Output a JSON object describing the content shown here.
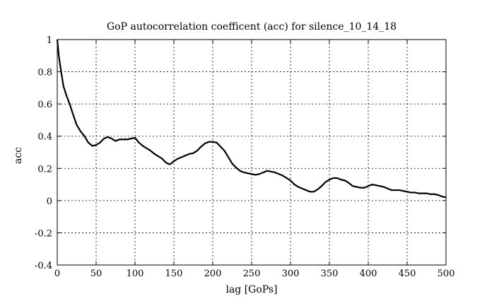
{
  "chart_data": {
    "type": "line",
    "title": "GoP autocorrelation coefficent (acc) for silence_10_14_18",
    "xlabel": "lag [GoPs]",
    "ylabel": "acc",
    "xlim": [
      0,
      500
    ],
    "ylim": [
      -0.4,
      1
    ],
    "grid": true,
    "x_ticks": [
      0,
      50,
      100,
      150,
      200,
      250,
      300,
      350,
      400,
      450,
      500
    ],
    "y_ticks": [
      -0.4,
      -0.2,
      0,
      0.2,
      0.4,
      0.6,
      0.8,
      1
    ],
    "x_tick_labels": [
      "0",
      "50",
      "100",
      "150",
      "200",
      "250",
      "300",
      "350",
      "400",
      "450",
      "500"
    ],
    "y_tick_labels": [
      "-0.4",
      "-0.2",
      "0",
      "0.2",
      "0.4",
      "0.6",
      "0.8",
      "1"
    ],
    "series": [
      {
        "name": "acc",
        "x": [
          0,
          2,
          5,
          8,
          12,
          16,
          20,
          25,
          30,
          35,
          40,
          45,
          50,
          55,
          60,
          65,
          70,
          75,
          80,
          85,
          90,
          95,
          100,
          105,
          110,
          115,
          120,
          125,
          130,
          135,
          140,
          145,
          150,
          155,
          160,
          165,
          170,
          175,
          180,
          185,
          190,
          195,
          200,
          205,
          210,
          215,
          220,
          225,
          230,
          235,
          240,
          245,
          250,
          255,
          260,
          265,
          270,
          275,
          280,
          285,
          290,
          295,
          300,
          305,
          310,
          315,
          320,
          325,
          330,
          335,
          340,
          345,
          350,
          355,
          360,
          365,
          370,
          375,
          380,
          385,
          390,
          395,
          400,
          405,
          410,
          415,
          420,
          425,
          430,
          435,
          440,
          445,
          450,
          455,
          460,
          465,
          470,
          475,
          480,
          485,
          490,
          495,
          500
        ],
        "values": [
          1.0,
          0.9,
          0.8,
          0.71,
          0.65,
          0.6,
          0.54,
          0.47,
          0.43,
          0.4,
          0.36,
          0.34,
          0.345,
          0.36,
          0.385,
          0.395,
          0.385,
          0.37,
          0.38,
          0.38,
          0.38,
          0.385,
          0.39,
          0.36,
          0.34,
          0.325,
          0.31,
          0.29,
          0.275,
          0.26,
          0.235,
          0.225,
          0.245,
          0.26,
          0.27,
          0.28,
          0.29,
          0.295,
          0.31,
          0.335,
          0.355,
          0.365,
          0.365,
          0.36,
          0.335,
          0.31,
          0.27,
          0.23,
          0.205,
          0.185,
          0.175,
          0.17,
          0.165,
          0.16,
          0.165,
          0.175,
          0.185,
          0.18,
          0.175,
          0.165,
          0.155,
          0.14,
          0.125,
          0.1,
          0.085,
          0.075,
          0.065,
          0.055,
          0.055,
          0.07,
          0.09,
          0.115,
          0.13,
          0.14,
          0.14,
          0.13,
          0.125,
          0.11,
          0.09,
          0.085,
          0.08,
          0.08,
          0.09,
          0.1,
          0.095,
          0.09,
          0.085,
          0.075,
          0.065,
          0.065,
          0.065,
          0.06,
          0.055,
          0.05,
          0.05,
          0.045,
          0.045,
          0.045,
          0.04,
          0.04,
          0.035,
          0.025,
          0.02
        ]
      }
    ]
  }
}
